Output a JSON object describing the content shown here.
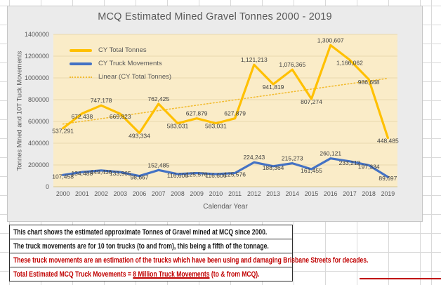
{
  "chart": {
    "legend_position": "top-left-inside"
  },
  "chart_data": {
    "type": "line",
    "title": "MCQ Estimated Mined Gravel Tonnes 2000 - 2019",
    "xlabel": "Calendar Year",
    "ylabel": "Tonnes Mined and 10T Tuck Movements",
    "ylim": [
      0,
      1400000
    ],
    "ytick_step": 200000,
    "ytick_format": "plain",
    "grid": true,
    "legend_position": "top-left-inside",
    "categories": [
      "2000",
      "2001",
      "2002",
      "2003",
      "2006",
      "2007",
      "2008",
      "2009",
      "2010",
      "2011",
      "2012",
      "2013",
      "2014",
      "2015",
      "2016",
      "2017",
      "2018",
      "2019"
    ],
    "series": [
      {
        "name": "CY Total Tonnes",
        "color": "#FFC000",
        "values": [
          537291,
          672438,
          747178,
          669823,
          493334,
          762425,
          583031,
          627879,
          583031,
          627879,
          1121213,
          941819,
          1076365,
          807274,
          1300607,
          1166062,
          986668,
          448485
        ],
        "label_sides": [
          "level",
          "level",
          "above",
          "level",
          "level",
          "above",
          "level",
          "above",
          "level",
          "above",
          "above",
          "level",
          "above",
          "level",
          "above",
          "level",
          "level",
          "level"
        ]
      },
      {
        "name": "CY Truck Movements",
        "color": "#4472C4",
        "values": [
          107458,
          134488,
          149436,
          133965,
          98667,
          152485,
          116606,
          125576,
          116606,
          125576,
          224243,
          188364,
          215273,
          161455,
          260121,
          233212,
          197334,
          89697
        ],
        "label_sides": [
          "level",
          "level",
          "level",
          "level",
          "level",
          "above",
          "level",
          "level",
          "level",
          "level",
          "above",
          "level",
          "above",
          "level",
          "above",
          "level",
          "level",
          "level"
        ]
      }
    ],
    "trendline": {
      "name": "Linear (CY Total Tonnes)",
      "color": "#F2BC33",
      "style": "dotted",
      "start_value": 576000,
      "end_value": 996000
    },
    "colors": {
      "plot_fill": "#FAECC8",
      "gridline": "#E8D9AE",
      "axis_line": "#D5C48D",
      "tick_text": "#595959",
      "data_label_text": "#404040"
    }
  },
  "notes": {
    "row1": "This chart shows the estimated approximate Tonnes of Gravel mined at MCQ since 2000.",
    "row2": "The truck movements are for 10 ton trucks (to and from), this being a fifth of the tonnage.",
    "row3": "These truck movements are an estimation of the trucks which have been using and damaging Brisbane Streets for decades.",
    "row4_prefix": "Total Estimated MCQ Truck Movements = ",
    "row4_underlined": "8 Million Truck Movements",
    "row4_suffix": " (to & from MCQ).",
    "red_color": "#C00000"
  }
}
